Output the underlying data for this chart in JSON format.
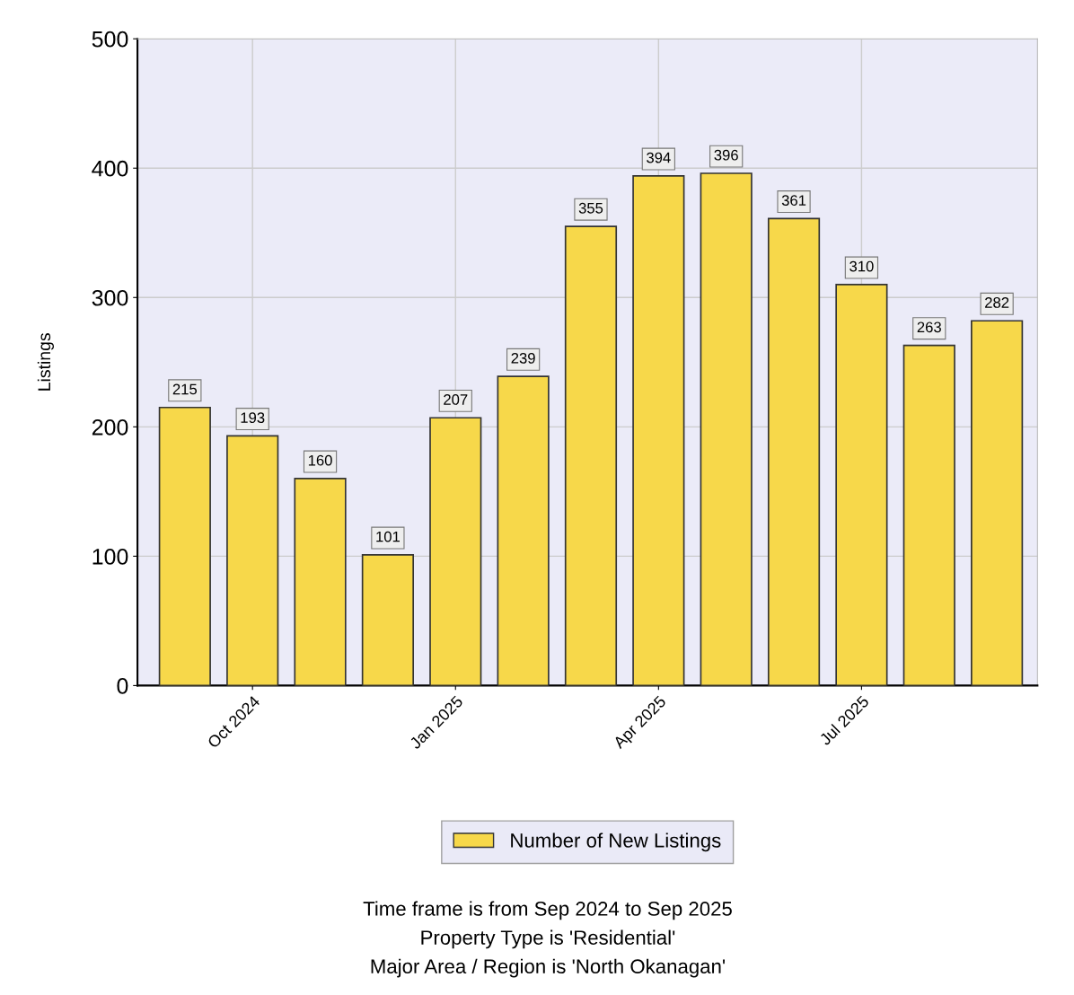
{
  "chart_data": {
    "type": "bar",
    "categories": [
      null,
      "Oct 2024",
      null,
      null,
      "Jan 2025",
      null,
      null,
      "Apr 2025",
      null,
      null,
      "Jul 2025",
      null,
      null
    ],
    "series": [
      {
        "name": "Number of New Listings",
        "color": "#f7d84a",
        "values": [
          215,
          193,
          160,
          101,
          207,
          239,
          355,
          394,
          396,
          361,
          310,
          263,
          282
        ]
      }
    ],
    "ylabel": "Listings",
    "ylim": [
      0,
      500
    ],
    "yticks": [
      0,
      100,
      200,
      300,
      400,
      500
    ],
    "grid": true,
    "legend": "bottom",
    "data_labels": true,
    "annotations": [
      "Time frame is from Sep 2024 to Sep 2025",
      "Property Type is 'Residential'",
      "Major Area / Region is 'North Okanagan'"
    ]
  }
}
